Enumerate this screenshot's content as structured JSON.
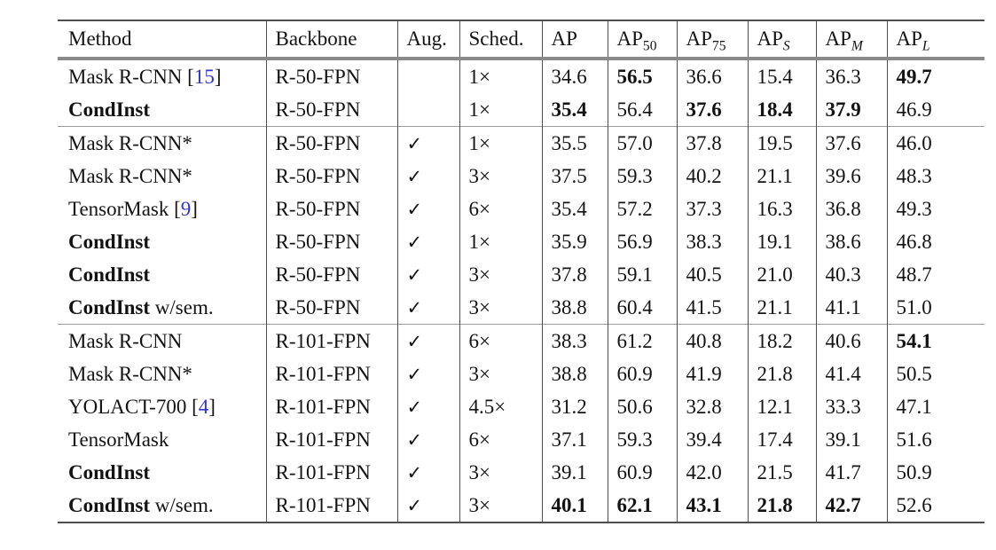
{
  "colors": {
    "text": "#131313",
    "citation_link": "#3333cc",
    "rule_heavy": "#4e4e4e",
    "rule_header": "#8a8a8a",
    "rule_section": "#9c9c9c"
  },
  "table": {
    "checkmark": "✓",
    "columns": [
      {
        "id": "method",
        "label": "Method",
        "sub": "",
        "sub_italic": false
      },
      {
        "id": "backbone",
        "label": "Backbone",
        "sub": "",
        "sub_italic": false
      },
      {
        "id": "aug",
        "label": "Aug.",
        "sub": "",
        "sub_italic": false
      },
      {
        "id": "sched",
        "label": "Sched.",
        "sub": "",
        "sub_italic": false
      },
      {
        "id": "ap",
        "label": "AP",
        "sub": "",
        "sub_italic": false
      },
      {
        "id": "ap50",
        "label": "AP",
        "sub": "50",
        "sub_italic": false
      },
      {
        "id": "ap75",
        "label": "AP",
        "sub": "75",
        "sub_italic": false
      },
      {
        "id": "apS",
        "label": "AP",
        "sub": "S",
        "sub_italic": true
      },
      {
        "id": "apM",
        "label": "AP",
        "sub": "M",
        "sub_italic": true
      },
      {
        "id": "apL",
        "label": "AP",
        "sub": "L",
        "sub_italic": true
      }
    ],
    "rows": [
      {
        "method": "Mask R-CNN",
        "method_bold": false,
        "citation": "15",
        "suffix": "",
        "backbone": "R-50-FPN",
        "aug": false,
        "sched": "1×",
        "values": [
          "34.6",
          "56.5",
          "36.6",
          "15.4",
          "36.3",
          "49.7"
        ],
        "bold": [
          1,
          5
        ],
        "section_start": false
      },
      {
        "method": "CondInst",
        "method_bold": true,
        "citation": "",
        "suffix": "",
        "backbone": "R-50-FPN",
        "aug": false,
        "sched": "1×",
        "values": [
          "35.4",
          "56.4",
          "37.6",
          "18.4",
          "37.9",
          "46.9"
        ],
        "bold": [
          0,
          2,
          3,
          4
        ],
        "section_start": false
      },
      {
        "method": "Mask R-CNN*",
        "method_bold": false,
        "citation": "",
        "suffix": "",
        "backbone": "R-50-FPN",
        "aug": true,
        "sched": "1×",
        "values": [
          "35.5",
          "57.0",
          "37.8",
          "19.5",
          "37.6",
          "46.0"
        ],
        "bold": [],
        "section_start": true
      },
      {
        "method": "Mask R-CNN*",
        "method_bold": false,
        "citation": "",
        "suffix": "",
        "backbone": "R-50-FPN",
        "aug": true,
        "sched": "3×",
        "values": [
          "37.5",
          "59.3",
          "40.2",
          "21.1",
          "39.6",
          "48.3"
        ],
        "bold": [],
        "section_start": false
      },
      {
        "method": "TensorMask",
        "method_bold": false,
        "citation": "9",
        "suffix": "",
        "backbone": "R-50-FPN",
        "aug": true,
        "sched": "6×",
        "values": [
          "35.4",
          "57.2",
          "37.3",
          "16.3",
          "36.8",
          "49.3"
        ],
        "bold": [],
        "section_start": false
      },
      {
        "method": "CondInst",
        "method_bold": true,
        "citation": "",
        "suffix": "",
        "backbone": "R-50-FPN",
        "aug": true,
        "sched": "1×",
        "values": [
          "35.9",
          "56.9",
          "38.3",
          "19.1",
          "38.6",
          "46.8"
        ],
        "bold": [],
        "section_start": false
      },
      {
        "method": "CondInst",
        "method_bold": true,
        "citation": "",
        "suffix": "",
        "backbone": "R-50-FPN",
        "aug": true,
        "sched": "3×",
        "values": [
          "37.8",
          "59.1",
          "40.5",
          "21.0",
          "40.3",
          "48.7"
        ],
        "bold": [],
        "section_start": false
      },
      {
        "method": "CondInst",
        "method_bold": true,
        "citation": "",
        "suffix": " w/sem.",
        "backbone": "R-50-FPN",
        "aug": true,
        "sched": "3×",
        "values": [
          "38.8",
          "60.4",
          "41.5",
          "21.1",
          "41.1",
          "51.0"
        ],
        "bold": [],
        "section_start": false
      },
      {
        "method": "Mask R-CNN",
        "method_bold": false,
        "citation": "",
        "suffix": "",
        "backbone": "R-101-FPN",
        "aug": true,
        "sched": "6×",
        "values": [
          "38.3",
          "61.2",
          "40.8",
          "18.2",
          "40.6",
          "54.1"
        ],
        "bold": [
          5
        ],
        "section_start": true
      },
      {
        "method": "Mask R-CNN*",
        "method_bold": false,
        "citation": "",
        "suffix": "",
        "backbone": "R-101-FPN",
        "aug": true,
        "sched": "3×",
        "values": [
          "38.8",
          "60.9",
          "41.9",
          "21.8",
          "41.4",
          "50.5"
        ],
        "bold": [],
        "section_start": false
      },
      {
        "method": "YOLACT-700",
        "method_bold": false,
        "citation": "4",
        "suffix": "",
        "backbone": "R-101-FPN",
        "aug": true,
        "sched": "4.5×",
        "values": [
          "31.2",
          "50.6",
          "32.8",
          "12.1",
          "33.3",
          "47.1"
        ],
        "bold": [],
        "section_start": false
      },
      {
        "method": "TensorMask",
        "method_bold": false,
        "citation": "",
        "suffix": "",
        "backbone": "R-101-FPN",
        "aug": true,
        "sched": "6×",
        "values": [
          "37.1",
          "59.3",
          "39.4",
          "17.4",
          "39.1",
          "51.6"
        ],
        "bold": [],
        "section_start": false
      },
      {
        "method": "CondInst",
        "method_bold": true,
        "citation": "",
        "suffix": "",
        "backbone": "R-101-FPN",
        "aug": true,
        "sched": "3×",
        "values": [
          "39.1",
          "60.9",
          "42.0",
          "21.5",
          "41.7",
          "50.9"
        ],
        "bold": [],
        "section_start": false
      },
      {
        "method": "CondInst",
        "method_bold": true,
        "citation": "",
        "suffix": " w/sem.",
        "backbone": "R-101-FPN",
        "aug": true,
        "sched": "3×",
        "values": [
          "40.1",
          "62.1",
          "43.1",
          "21.8",
          "42.7",
          "52.6"
        ],
        "bold": [
          0,
          1,
          2,
          3,
          4
        ],
        "section_start": false
      }
    ]
  }
}
